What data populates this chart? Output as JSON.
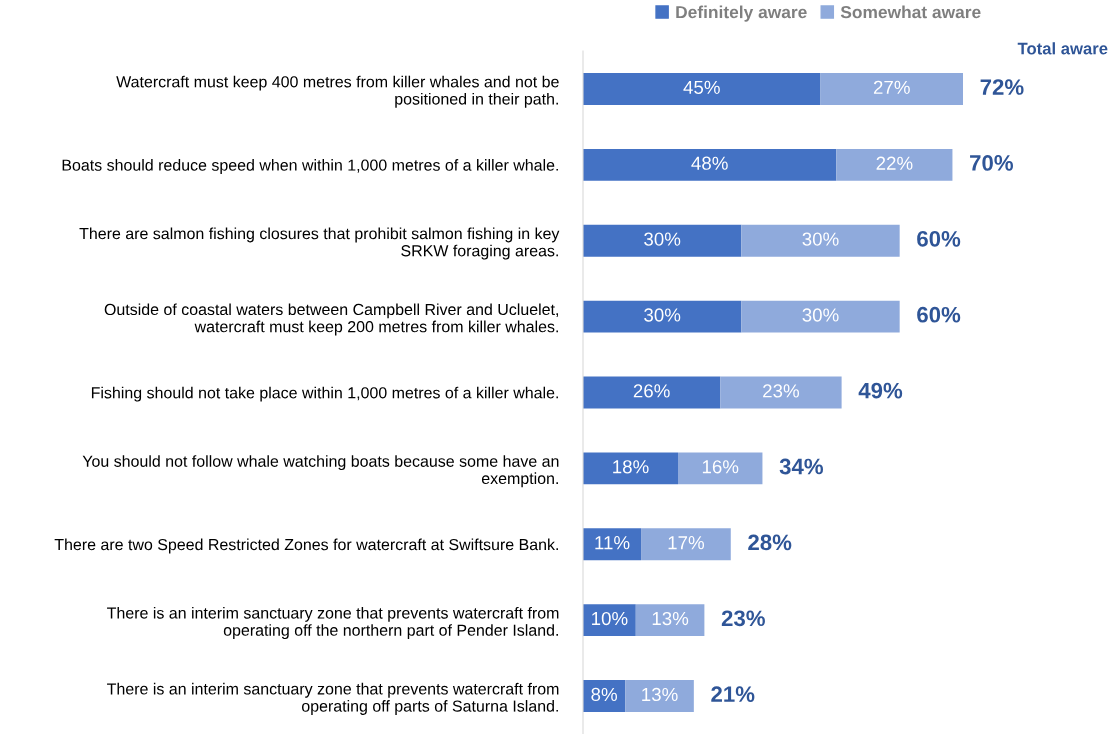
{
  "chart_data": {
    "type": "bar",
    "orientation": "horizontal",
    "stacked": true,
    "categories": [
      "Watercraft must keep 400 metres from killer whales and not be\npositioned in their path.",
      "Boats should reduce speed when within 1,000 metres of a killer whale.",
      "There are salmon fishing closures that prohibit salmon fishing in key\nSRKW foraging areas.",
      "Outside of coastal waters between Campbell River and Ucluelet,\nwatercraft must keep 200 metres from killer whales.",
      "Fishing should not take place within 1,000 metres of a killer whale.",
      "You should not follow whale watching boats because some have an\nexemption.",
      "There are two Speed Restricted Zones for watercraft at Swiftsure Bank.",
      "There is an interim sanctuary zone that prevents watercraft from\noperating off the northern part of Pender Island.",
      "There is an interim sanctuary zone that prevents watercraft from\noperating off parts of Saturna Island."
    ],
    "series": [
      {
        "name": "Definitely aware",
        "color": "#4472c4",
        "values": [
          45,
          48,
          30,
          30,
          26,
          18,
          11,
          10,
          8
        ],
        "value_labels": [
          "45%",
          "48%",
          "30%",
          "30%",
          "26%",
          "18%",
          "11%",
          "10%",
          "8%"
        ]
      },
      {
        "name": "Somewhat aware",
        "color": "#8faadc",
        "values": [
          27,
          22,
          30,
          30,
          23,
          16,
          17,
          13,
          13
        ],
        "value_labels": [
          "27%",
          "22%",
          "30%",
          "30%",
          "23%",
          "16%",
          "17%",
          "13%",
          "13%"
        ]
      }
    ],
    "totals": [
      "72%",
      "70%",
      "60%",
      "60%",
      "49%",
      "34%",
      "28%",
      "23%",
      "21%"
    ],
    "annotations": [
      "Total aware"
    ],
    "tick_labels": "y",
    "grid": false,
    "legend": "top"
  }
}
